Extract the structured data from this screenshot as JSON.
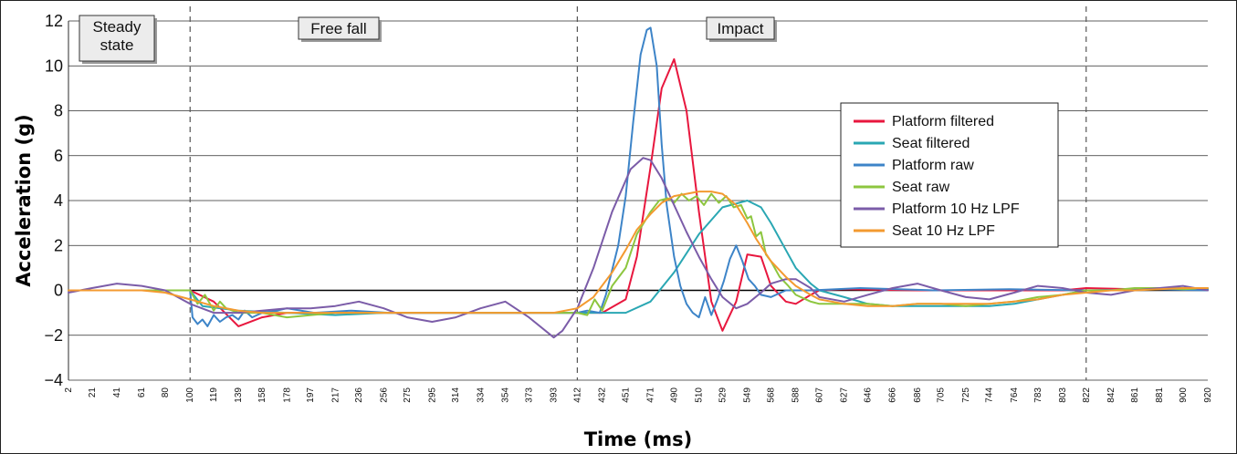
{
  "chart_data": {
    "type": "line",
    "title": "",
    "xlabel": "Time (ms)",
    "ylabel": "Acceleration (g)",
    "xlim": [
      2,
      920
    ],
    "ylim": [
      -4,
      12
    ],
    "yticks": [
      -4,
      -2,
      0,
      2,
      4,
      6,
      8,
      10,
      12
    ],
    "xtick_labels": [
      "2",
      "21",
      "41",
      "61",
      "80",
      "100",
      "119",
      "139",
      "158",
      "178",
      "197",
      "217",
      "236",
      "256",
      "275",
      "295",
      "314",
      "334",
      "354",
      "373",
      "393",
      "412",
      "432",
      "451",
      "471",
      "490",
      "510",
      "529",
      "549",
      "568",
      "588",
      "607",
      "627",
      "646",
      "666",
      "686",
      "705",
      "725",
      "744",
      "764",
      "783",
      "803",
      "822",
      "842",
      "861",
      "881",
      "900",
      "920"
    ],
    "grid": true,
    "legend_position": "right",
    "phases": [
      {
        "label": "Steady\nstate",
        "start": 2,
        "end": 100
      },
      {
        "label": "Free fall",
        "start": 100,
        "end": 412
      },
      {
        "label": "Impact",
        "start": 412,
        "end": 822
      }
    ],
    "phase_lines": [
      100,
      412,
      822
    ],
    "series": [
      {
        "name": "Platform filtered",
        "color": "#e8173e",
        "x": [
          2,
          41,
          80,
          100,
          119,
          139,
          158,
          178,
          217,
          256,
          295,
          334,
          373,
          412,
          432,
          451,
          460,
          471,
          480,
          490,
          500,
          510,
          520,
          529,
          540,
          549,
          560,
          568,
          580,
          588,
          600,
          607,
          627,
          686,
          744,
          803,
          822,
          861,
          900,
          920
        ],
        "y": [
          0,
          0,
          0,
          0,
          -0.5,
          -1.6,
          -1.2,
          -1.0,
          -1.0,
          -1.0,
          -1.0,
          -1.0,
          -1.0,
          -1.0,
          -1.0,
          -0.4,
          1.5,
          5.5,
          9.0,
          10.3,
          8.0,
          3.5,
          -0.5,
          -1.8,
          -0.5,
          1.6,
          1.5,
          0.2,
          -0.5,
          -0.6,
          -0.2,
          0,
          0.05,
          0,
          0,
          0,
          0.1,
          0.05,
          0.05,
          0.05
        ]
      },
      {
        "name": "Seat filtered",
        "color": "#2aa7b3",
        "x": [
          2,
          41,
          80,
          100,
          110,
          139,
          178,
          217,
          256,
          295,
          334,
          373,
          412,
          432,
          451,
          471,
          490,
          510,
          529,
          549,
          560,
          568,
          580,
          588,
          600,
          607,
          627,
          646,
          666,
          686,
          705,
          725,
          744,
          764,
          783,
          803,
          822,
          842,
          861,
          881,
          900,
          920
        ],
        "y": [
          0,
          0,
          0,
          0,
          -0.7,
          -0.9,
          -1.0,
          -1.1,
          -1.0,
          -1.0,
          -1.0,
          -1.0,
          -1.0,
          -1.0,
          -1.0,
          -0.5,
          0.8,
          2.5,
          3.7,
          4.0,
          3.7,
          3.0,
          1.8,
          1.0,
          0.3,
          0,
          -0.3,
          -0.6,
          -0.7,
          -0.7,
          -0.7,
          -0.7,
          -0.7,
          -0.6,
          -0.4,
          -0.2,
          0,
          0,
          0.05,
          0.1,
          0.1,
          0.05
        ]
      },
      {
        "name": "Platform raw",
        "color": "#3d84c8",
        "x": [
          100,
          102,
          106,
          110,
          114,
          119,
          124,
          129,
          134,
          139,
          144,
          150,
          158,
          170,
          178,
          200,
          230,
          260,
          300,
          340,
          380,
          412,
          420,
          430,
          435,
          440,
          445,
          451,
          457,
          463,
          468,
          471,
          476,
          480,
          484,
          490,
          495,
          500,
          505,
          510,
          515,
          520,
          525,
          530,
          535,
          540,
          545,
          550,
          555,
          560,
          568,
          580,
          600,
          640,
          700,
          760,
          822,
          880,
          920
        ],
        "y": [
          0,
          -1.2,
          -1.5,
          -1.3,
          -1.6,
          -1.1,
          -1.4,
          -1.2,
          -1.1,
          -1.3,
          -0.9,
          -1.2,
          -1.0,
          -0.9,
          -0.8,
          -1.0,
          -0.9,
          -1.0,
          -1.0,
          -1.0,
          -1.0,
          -1.0,
          -0.9,
          -1.0,
          -0.2,
          0.9,
          2.0,
          4.2,
          7.5,
          10.5,
          11.6,
          11.7,
          10.0,
          6.5,
          3.8,
          1.5,
          0.2,
          -0.6,
          -1.0,
          -1.2,
          -0.3,
          -1.1,
          -0.4,
          0.4,
          1.4,
          2.0,
          1.3,
          0.5,
          0.2,
          -0.2,
          -0.3,
          0,
          0,
          0.1,
          0,
          0.05,
          0,
          0.05,
          0
        ]
      },
      {
        "name": "Seat raw",
        "color": "#8dc63f",
        "x": [
          2,
          41,
          80,
          100,
          106,
          112,
          119,
          124,
          129,
          139,
          158,
          178,
          217,
          256,
          295,
          334,
          373,
          412,
          420,
          426,
          432,
          440,
          451,
          460,
          471,
          478,
          485,
          490,
          496,
          502,
          508,
          514,
          520,
          526,
          532,
          538,
          544,
          549,
          552,
          556,
          560,
          564,
          568,
          575,
          582,
          588,
          600,
          607,
          627,
          646,
          666,
          686,
          705,
          725,
          744,
          764,
          783,
          803,
          822,
          842,
          861,
          881,
          900,
          920
        ],
        "y": [
          0,
          0,
          0,
          0,
          -0.6,
          -0.2,
          -0.9,
          -0.5,
          -0.8,
          -1.0,
          -1.0,
          -1.2,
          -1.0,
          -1.0,
          -1.0,
          -1.0,
          -1.0,
          -1.0,
          -1.1,
          -0.4,
          -0.9,
          0.2,
          1.0,
          2.5,
          3.5,
          4.0,
          4.1,
          3.9,
          4.3,
          4.0,
          4.2,
          3.8,
          4.3,
          3.9,
          4.2,
          3.7,
          3.8,
          3.2,
          3.3,
          2.4,
          2.6,
          1.6,
          1.3,
          0.6,
          0.2,
          -0.2,
          -0.5,
          -0.6,
          -0.6,
          -0.6,
          -0.7,
          -0.6,
          -0.6,
          -0.7,
          -0.6,
          -0.5,
          -0.3,
          -0.2,
          0,
          0,
          0.1,
          0.1,
          0.05,
          0.1
        ]
      },
      {
        "name": "Platform 10 Hz LPF",
        "color": "#7b5ca8",
        "x": [
          2,
          21,
          41,
          61,
          80,
          100,
          119,
          139,
          158,
          178,
          197,
          217,
          236,
          256,
          275,
          295,
          314,
          334,
          354,
          373,
          393,
          400,
          412,
          425,
          440,
          455,
          465,
          471,
          480,
          490,
          500,
          510,
          520,
          529,
          540,
          549,
          560,
          568,
          580,
          588,
          600,
          607,
          627,
          646,
          666,
          686,
          705,
          725,
          744,
          764,
          783,
          803,
          822,
          842,
          861,
          881,
          900,
          920
        ],
        "y": [
          -0.1,
          0.1,
          0.3,
          0.2,
          0,
          -0.6,
          -1.0,
          -1.0,
          -0.9,
          -0.8,
          -0.8,
          -0.7,
          -0.5,
          -0.8,
          -1.2,
          -1.4,
          -1.2,
          -0.8,
          -0.5,
          -1.2,
          -2.1,
          -1.8,
          -0.8,
          1.0,
          3.5,
          5.4,
          5.9,
          5.8,
          5.0,
          3.8,
          2.6,
          1.5,
          0.5,
          -0.3,
          -0.8,
          -0.6,
          -0.1,
          0.3,
          0.5,
          0.5,
          0.1,
          -0.3,
          -0.5,
          -0.2,
          0.1,
          0.3,
          0,
          -0.3,
          -0.4,
          -0.1,
          0.2,
          0.1,
          -0.1,
          -0.2,
          0,
          0.1,
          0.2,
          0
        ]
      },
      {
        "name": "Seat 10 Hz LPF",
        "color": "#f39a30",
        "x": [
          2,
          21,
          41,
          61,
          80,
          100,
          119,
          139,
          158,
          178,
          197,
          217,
          236,
          256,
          275,
          295,
          314,
          334,
          354,
          373,
          393,
          412,
          425,
          440,
          451,
          460,
          471,
          480,
          490,
          500,
          510,
          520,
          529,
          540,
          549,
          556,
          568,
          580,
          588,
          600,
          607,
          627,
          646,
          666,
          686,
          705,
          725,
          744,
          764,
          783,
          803,
          822,
          842,
          861,
          881,
          900,
          920
        ],
        "y": [
          0,
          0,
          0,
          0,
          -0.1,
          -0.4,
          -0.7,
          -0.9,
          -1.0,
          -1.0,
          -1.0,
          -1.0,
          -1.0,
          -1.0,
          -1.0,
          -1.0,
          -1.0,
          -1.0,
          -1.0,
          -1.0,
          -1.0,
          -0.8,
          -0.3,
          0.8,
          1.8,
          2.7,
          3.4,
          3.9,
          4.2,
          4.3,
          4.4,
          4.4,
          4.3,
          3.8,
          3.0,
          2.3,
          1.3,
          0.6,
          0.2,
          -0.2,
          -0.4,
          -0.6,
          -0.7,
          -0.7,
          -0.6,
          -0.6,
          -0.6,
          -0.6,
          -0.5,
          -0.4,
          -0.2,
          -0.1,
          0,
          0,
          0.05,
          0.1,
          0.1
        ]
      }
    ]
  }
}
